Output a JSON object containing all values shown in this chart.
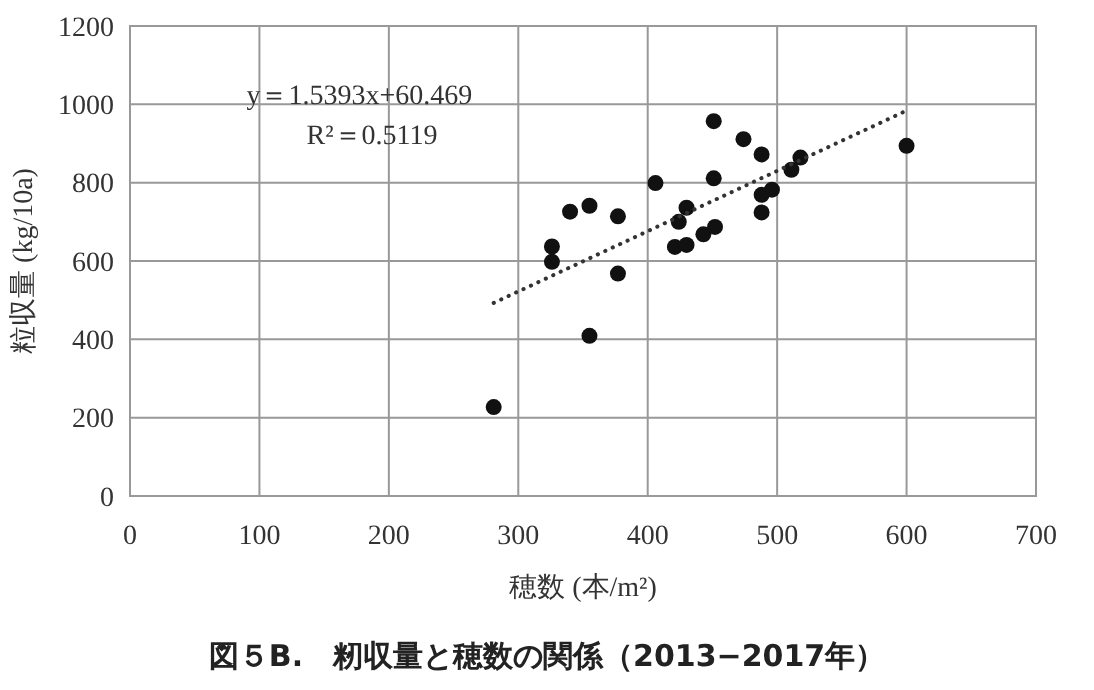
{
  "chart_data": {
    "type": "scatter",
    "title": "図５B.　籾収量と穂数の関係（2013−2017年）",
    "xlabel": "穂数 (本/m²)",
    "ylabel": "粒収量 (kg/10a)",
    "xlim": [
      0,
      700
    ],
    "xticks": [
      0,
      100,
      200,
      300,
      400,
      500,
      600,
      700
    ],
    "ylim": [
      0,
      1200
    ],
    "yticks": [
      0,
      200,
      400,
      600,
      800,
      1000,
      1200
    ],
    "grid": true,
    "marker": "circle",
    "annotations": [
      "y＝1.5393x+60.469",
      "R²＝0.5119"
    ],
    "series": [
      {
        "color": "#111111",
        "x": [
          281,
          326,
          326,
          340,
          355,
          355,
          377,
          377,
          406,
          451,
          451,
          430,
          424,
          421,
          430,
          443,
          452,
          474,
          488,
          488,
          496,
          488,
          511,
          518,
          600
        ],
        "values": [
          227,
          637,
          598,
          726,
          741,
          409,
          714,
          568,
          799,
          957,
          811,
          736,
          700,
          636,
          641,
          668,
          687,
          911,
          872,
          769,
          782,
          724,
          833,
          864,
          894
        ]
      },
      {
        "type": "line",
        "color": "#333333",
        "line_style": "dotted",
        "marker": "none",
        "x": [
          281,
          600
        ],
        "values": [
          493,
          984
        ]
      }
    ]
  }
}
